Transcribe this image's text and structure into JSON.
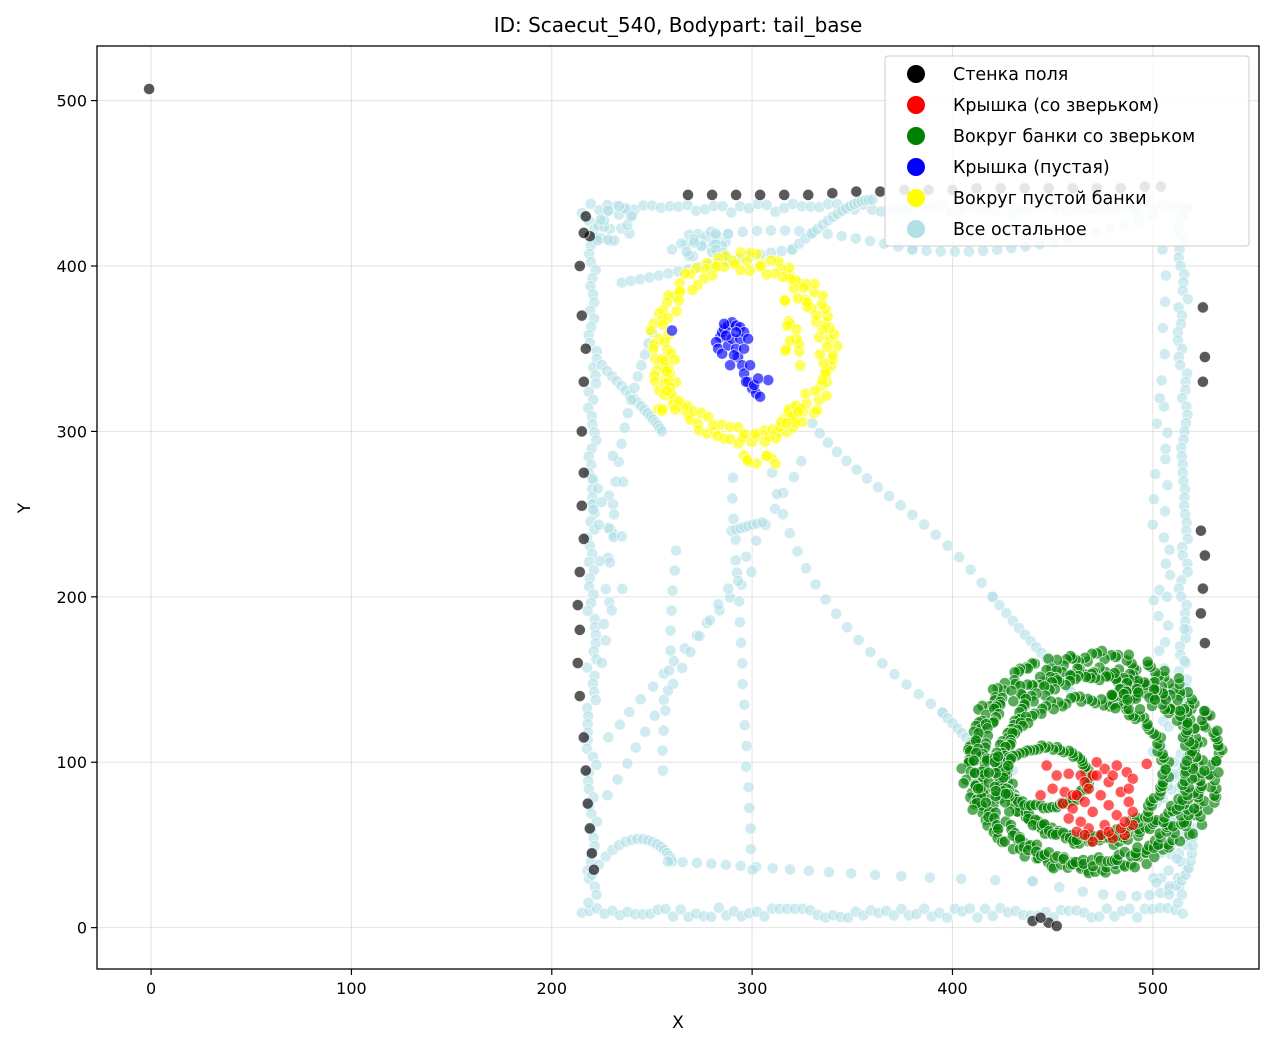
{
  "chart_data": {
    "type": "scatter",
    "title": "ID: Scaecut_540, Bodypart: tail_base",
    "xlabel": "X",
    "ylabel": "Y",
    "xlim": [
      -27,
      553
    ],
    "ylim": [
      -25,
      533
    ],
    "xticks": [
      0,
      100,
      200,
      300,
      400,
      500
    ],
    "yticks": [
      0,
      100,
      200,
      300,
      400,
      500
    ],
    "grid": true,
    "legend_position": "top-right",
    "series": [
      {
        "name": "Стенка поля",
        "color": "#000000",
        "points": [
          [
            -1,
            507
          ],
          [
            219,
            418
          ],
          [
            217,
            430
          ],
          [
            216,
            420
          ],
          [
            214,
            400
          ],
          [
            215,
            370
          ],
          [
            217,
            350
          ],
          [
            216,
            330
          ],
          [
            215,
            300
          ],
          [
            216,
            275
          ],
          [
            215,
            255
          ],
          [
            216,
            235
          ],
          [
            214,
            215
          ],
          [
            213,
            195
          ],
          [
            214,
            180
          ],
          [
            213,
            160
          ],
          [
            214,
            140
          ],
          [
            216,
            115
          ],
          [
            217,
            95
          ],
          [
            218,
            75
          ],
          [
            219,
            60
          ],
          [
            220,
            45
          ],
          [
            221,
            35
          ],
          [
            525,
            375
          ],
          [
            526,
            345
          ],
          [
            525,
            330
          ],
          [
            524,
            240
          ],
          [
            526,
            225
          ],
          [
            525,
            205
          ],
          [
            524,
            190
          ],
          [
            526,
            172
          ],
          [
            527,
            128
          ],
          [
            268,
            443
          ],
          [
            280,
            443
          ],
          [
            292,
            443
          ],
          [
            304,
            443
          ],
          [
            316,
            443
          ],
          [
            328,
            443
          ],
          [
            340,
            444
          ],
          [
            352,
            445
          ],
          [
            364,
            445
          ],
          [
            376,
            446
          ],
          [
            388,
            446
          ],
          [
            400,
            446
          ],
          [
            412,
            447
          ],
          [
            424,
            447
          ],
          [
            436,
            447
          ],
          [
            448,
            447
          ],
          [
            460,
            447
          ],
          [
            472,
            447
          ],
          [
            484,
            447
          ],
          [
            496,
            448
          ],
          [
            504,
            448
          ],
          [
            448,
            3
          ],
          [
            452,
            1
          ],
          [
            440,
            4
          ],
          [
            444,
            6
          ]
        ]
      },
      {
        "name": "Крышка (со зверьком)",
        "color": "#ff0000",
        "points": [
          [
            447,
            98
          ],
          [
            452,
            92
          ],
          [
            458,
            93
          ],
          [
            464,
            92
          ],
          [
            470,
            92
          ],
          [
            476,
            96
          ],
          [
            482,
            98
          ],
          [
            487,
            94
          ],
          [
            490,
            90
          ],
          [
            497,
            99
          ],
          [
            444,
            80
          ],
          [
            450,
            84
          ],
          [
            456,
            82
          ],
          [
            460,
            80
          ],
          [
            466,
            88
          ],
          [
            472,
            92
          ],
          [
            478,
            88
          ],
          [
            484,
            82
          ],
          [
            488,
            76
          ],
          [
            490,
            70
          ],
          [
            490,
            62
          ],
          [
            486,
            56
          ],
          [
            480,
            54
          ],
          [
            474,
            56
          ],
          [
            468,
            60
          ],
          [
            464,
            64
          ],
          [
            460,
            72
          ],
          [
            462,
            80
          ],
          [
            468,
            84
          ],
          [
            474,
            80
          ],
          [
            478,
            74
          ],
          [
            482,
            68
          ],
          [
            484,
            60
          ],
          [
            476,
            62
          ],
          [
            470,
            70
          ],
          [
            466,
            76
          ],
          [
            458,
            66
          ],
          [
            462,
            58
          ],
          [
            470,
            52
          ],
          [
            478,
            58
          ],
          [
            486,
            64
          ],
          [
            488,
            84
          ],
          [
            480,
            92
          ],
          [
            472,
            100
          ],
          [
            466,
            56
          ],
          [
            455,
            75
          ]
        ]
      },
      {
        "name": "Вокруг банки со зверьком",
        "color": "#008000",
        "points": [
          [
            470,
            100,
            "ring",
            62,
            64,
            180
          ],
          [
            468,
            98,
            "ring",
            55,
            58,
            170
          ],
          [
            472,
            102,
            "ring",
            47,
            50,
            150
          ],
          [
            466,
            96,
            "ring",
            40,
            42,
            120
          ],
          [
            446,
            91,
            "ring",
            22,
            18,
            70
          ],
          [
            420,
            88,
            "cluster",
            10,
            18,
            40
          ],
          [
            490,
            140,
            "cluster",
            12,
            8,
            30
          ]
        ]
      },
      {
        "name": "Крышка (пустая)",
        "color": "#0000ff",
        "points": [
          [
            260,
            361
          ],
          [
            284,
            357
          ],
          [
            285,
            360
          ],
          [
            286,
            362
          ],
          [
            288,
            364
          ],
          [
            290,
            366
          ],
          [
            292,
            364
          ],
          [
            294,
            363
          ],
          [
            282,
            354
          ],
          [
            283,
            350
          ],
          [
            285,
            347
          ],
          [
            288,
            352
          ],
          [
            290,
            356
          ],
          [
            292,
            350
          ],
          [
            293,
            345
          ],
          [
            295,
            340
          ],
          [
            296,
            335
          ],
          [
            298,
            330
          ],
          [
            300,
            326
          ],
          [
            302,
            323
          ],
          [
            304,
            321
          ],
          [
            308,
            331
          ],
          [
            296,
            350
          ],
          [
            294,
            356
          ],
          [
            291,
            346
          ],
          [
            289,
            340
          ],
          [
            287,
            358
          ],
          [
            296,
            360
          ],
          [
            298,
            356
          ],
          [
            299,
            340
          ],
          [
            297,
            330
          ],
          [
            301,
            328
          ],
          [
            303,
            332
          ],
          [
            286,
            365
          ],
          [
            292,
            360
          ]
        ]
      },
      {
        "name": "Вокруг пустой банки",
        "color": "#ffff00",
        "points": [
          [
            296,
            350,
            "ring",
            45,
            55,
            90
          ],
          [
            296,
            350,
            "ring",
            40,
            50,
            60
          ],
          [
            258,
            330,
            "cluster",
            5,
            18,
            14
          ],
          [
            322,
            360,
            "cluster",
            6,
            24,
            16
          ],
          [
            305,
            283,
            "cluster",
            10,
            3,
            8
          ],
          [
            320,
            310,
            "cluster",
            6,
            6,
            8
          ]
        ]
      },
      {
        "name": "Все остальное",
        "color": "#b0e0e6",
        "points": [
          [
            215,
            435,
            "hline",
            518,
            6,
            70
          ],
          [
            215,
            9,
            "hline",
            515,
            6,
            80
          ],
          [
            220,
            427,
            "vline",
            15,
            5,
            85
          ],
          [
            515,
            435,
            "vline",
            15,
            5,
            85
          ],
          [
            220,
            32,
            "curve",
            240,
            70,
            258,
            48,
            260,
            40
          ],
          [
            258,
            40,
            "curve",
            300,
            38,
            330,
            32,
            440,
            28
          ],
          [
            440,
            28,
            "curve",
            520,
            5,
            520,
            30,
            520,
            60
          ],
          [
            228,
            115,
            "line",
            300,
            215,
            1,
            14
          ],
          [
            228,
            80,
            "line",
            325,
            282,
            1,
            22
          ],
          [
            300,
            35,
            "line",
            290,
            272,
            1,
            20
          ],
          [
            255,
            95,
            "line",
            262,
            228,
            1,
            12
          ],
          [
            290,
            240,
            "line",
            305,
            245,
            1,
            8
          ],
          [
            310,
            275,
            "curve",
            322,
            200,
            362,
            160,
            395,
            130
          ],
          [
            395,
            130,
            "curve",
            410,
            110,
            420,
            100,
            430,
            95
          ],
          [
            330,
            305,
            "curve",
            350,
            270,
            390,
            250,
            420,
            200
          ],
          [
            420,
            200,
            "curve",
            440,
            170,
            455,
            155,
            460,
            140
          ],
          [
            225,
            340,
            "curve",
            240,
            320,
            250,
            310,
            255,
            300
          ],
          [
            225,
            160,
            "curve",
            230,
            300,
            240,
            320,
            250,
            360
          ],
          [
            260,
            410,
            "curve",
            300,
            430,
            340,
            420,
            380,
            410
          ],
          [
            380,
            410,
            "curve",
            420,
            405,
            460,
            415,
            500,
            430
          ],
          [
            235,
            390,
            "curve",
            260,
            395,
            290,
            405,
            320,
            410
          ],
          [
            320,
            410,
            "curve",
            340,
            430,
            350,
            440,
            360,
            440
          ],
          [
            505,
            410,
            "vline",
            30,
            5,
            25
          ],
          [
            505,
            320,
            "vline",
            30,
            10,
            20
          ],
          [
            512,
            200,
            "vline",
            25,
            15,
            10
          ],
          [
            505,
            100,
            "vline",
            20,
            15,
            12
          ],
          [
            278,
            412,
            "cluster",
            14,
            10,
            25
          ],
          [
            232,
            425,
            "cluster",
            10,
            12,
            20
          ],
          [
            228,
            228,
            "cluster",
            8,
            60,
            20
          ]
        ]
      }
    ]
  }
}
